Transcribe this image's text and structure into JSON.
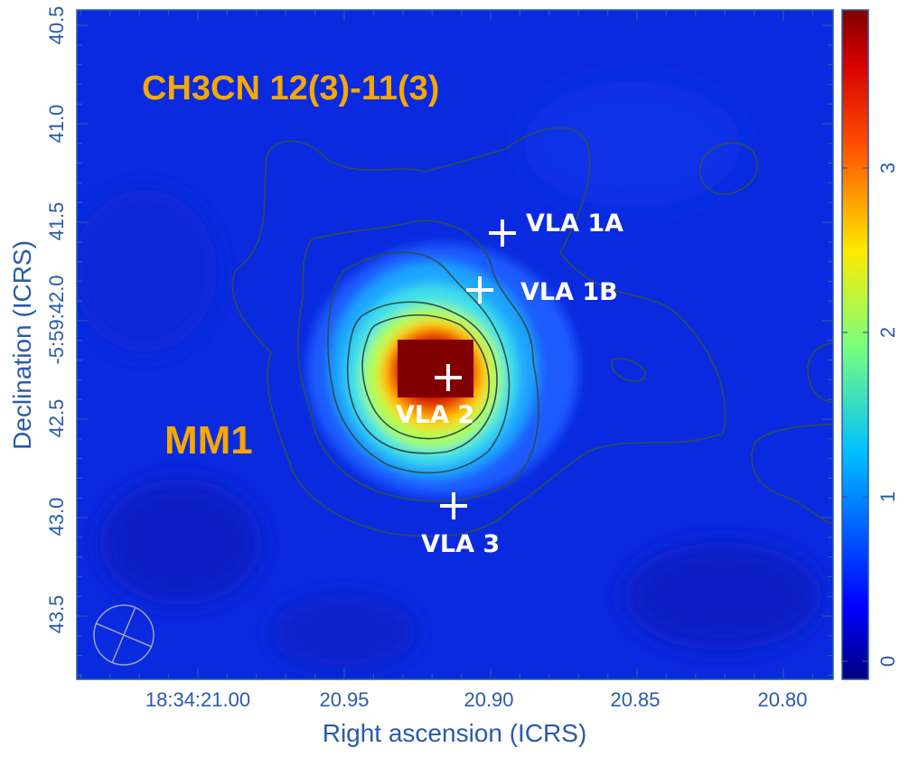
{
  "figure": {
    "line_label": "CH3CN 12(3)-11(3)",
    "source_label": "MM1",
    "x_axis_label": "Right ascension (ICRS)",
    "y_axis_label": "Declination (ICRS)",
    "x_ticks": [
      "18:34:21.00",
      "20.95",
      "20.90",
      "20.85",
      "20.80"
    ],
    "y_ticks": [
      "40.5",
      "41.0",
      "41.5",
      "-5:59:42.0",
      "42.5",
      "43.0",
      "43.5"
    ],
    "colorbar_ticks": [
      "0",
      "1",
      "2",
      "3"
    ],
    "markers": [
      {
        "label": "VLA 1A"
      },
      {
        "label": "VLA 1B"
      },
      {
        "label": "VLA 2"
      },
      {
        "label": "VLA 3"
      }
    ],
    "colors": {
      "axis": "#2a5ba8",
      "title_text": "#f5a800",
      "marker": "#ffffff",
      "contour": "#2f4f4f",
      "colormap": "jet"
    }
  }
}
